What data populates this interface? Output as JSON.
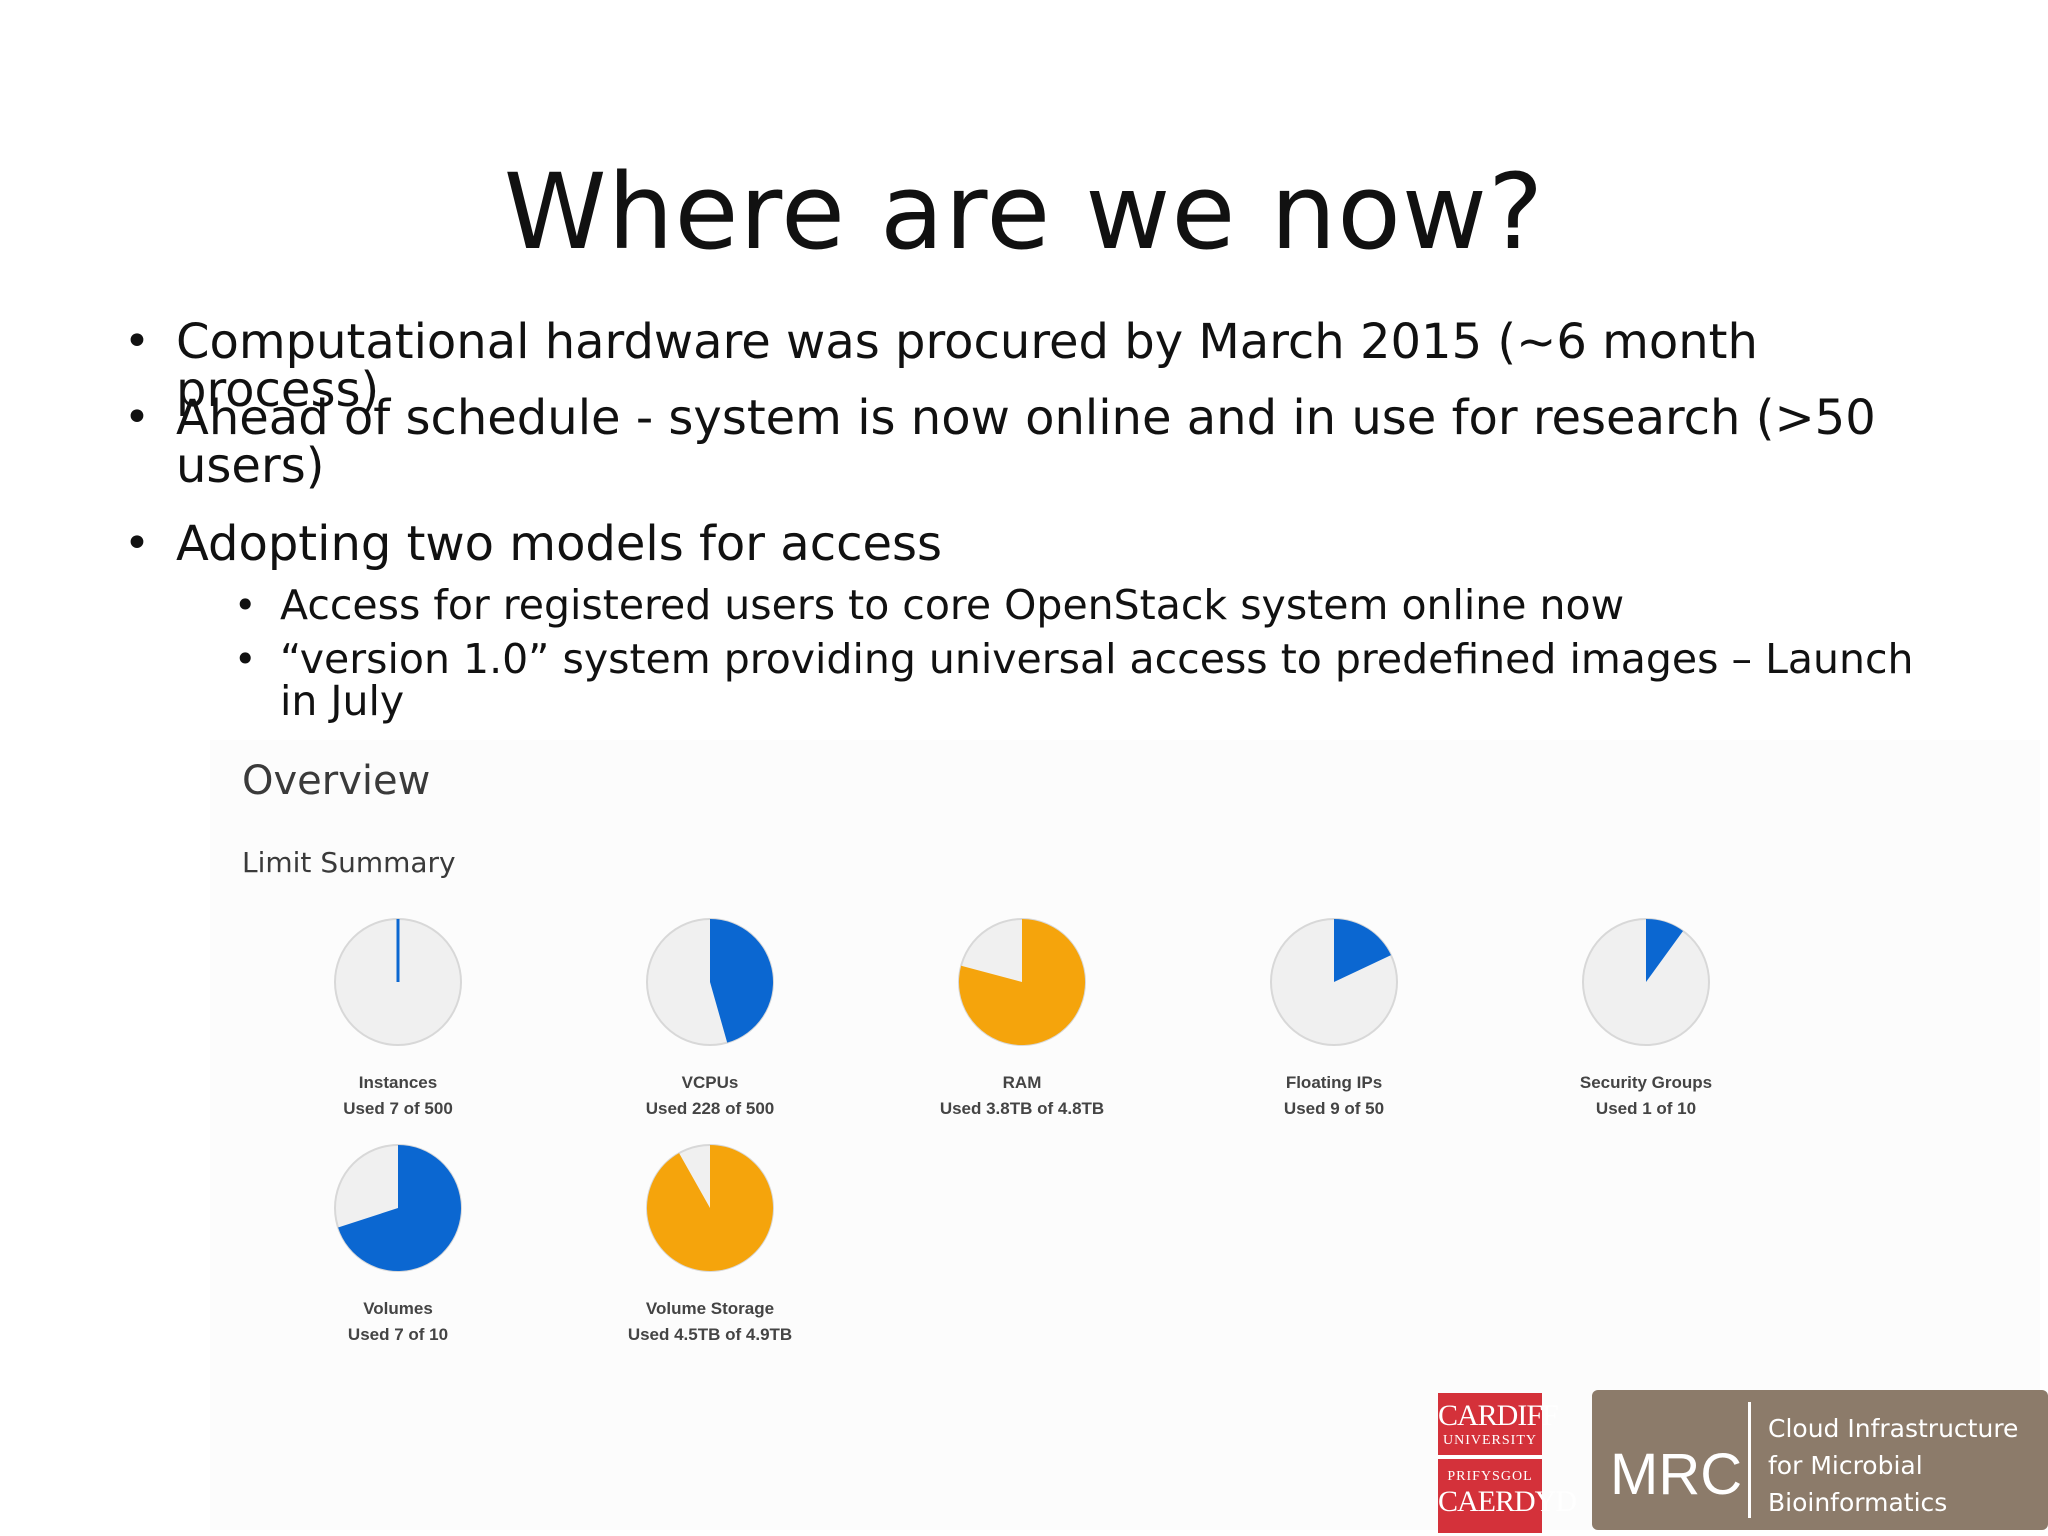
{
  "slide": {
    "title": "Where are we now?",
    "bullets": [
      "Computational hardware was procured by March 2015 (~6 month process)",
      "Ahead of schedule - system is now online and in use for research (>50 users)",
      "Adopting two models for access"
    ],
    "sub_bullets": [
      "Access for registered users to core OpenStack system online now",
      "“version 1.0” system providing universal access to predefined images – Launch in July"
    ]
  },
  "overview": {
    "title": "Overview",
    "subtitle": "Limit Summary"
  },
  "chart_data": {
    "type": "pie",
    "colors": {
      "used_normal": "#0b67d1",
      "used_warning": "#f5a40c",
      "remaining": "#f0f0f0",
      "outline": "#d8d8d8"
    },
    "charts": [
      {
        "name": "Instances",
        "caption": "Used 7 of 500",
        "used": 7,
        "total": 500,
        "status": "normal"
      },
      {
        "name": "VCPUs",
        "caption": "Used 228 of 500",
        "used": 228,
        "total": 500,
        "status": "normal"
      },
      {
        "name": "RAM",
        "caption": "Used 3.8TB of 4.8TB",
        "used": 3.8,
        "total": 4.8,
        "status": "warning"
      },
      {
        "name": "Floating IPs",
        "caption": "Used 9 of 50",
        "used": 9,
        "total": 50,
        "status": "normal"
      },
      {
        "name": "Security Groups",
        "caption": "Used 1 of 10",
        "used": 1,
        "total": 10,
        "status": "normal"
      },
      {
        "name": "Volumes",
        "caption": "Used 7 of 10",
        "used": 7,
        "total": 10,
        "status": "normal"
      },
      {
        "name": "Volume Storage",
        "caption": "Used 4.5TB of 4.9TB",
        "used": 4.5,
        "total": 4.9,
        "status": "warning"
      }
    ]
  },
  "logos": {
    "cardiff": [
      "CARDIFF",
      "UNIVERSITY",
      "PRIFYSGOL",
      "CAERDYD"
    ],
    "mrc": "MRC",
    "mrc_text": [
      "Cloud Infrastructure",
      "for Microbial",
      "Bioinformatics"
    ]
  }
}
